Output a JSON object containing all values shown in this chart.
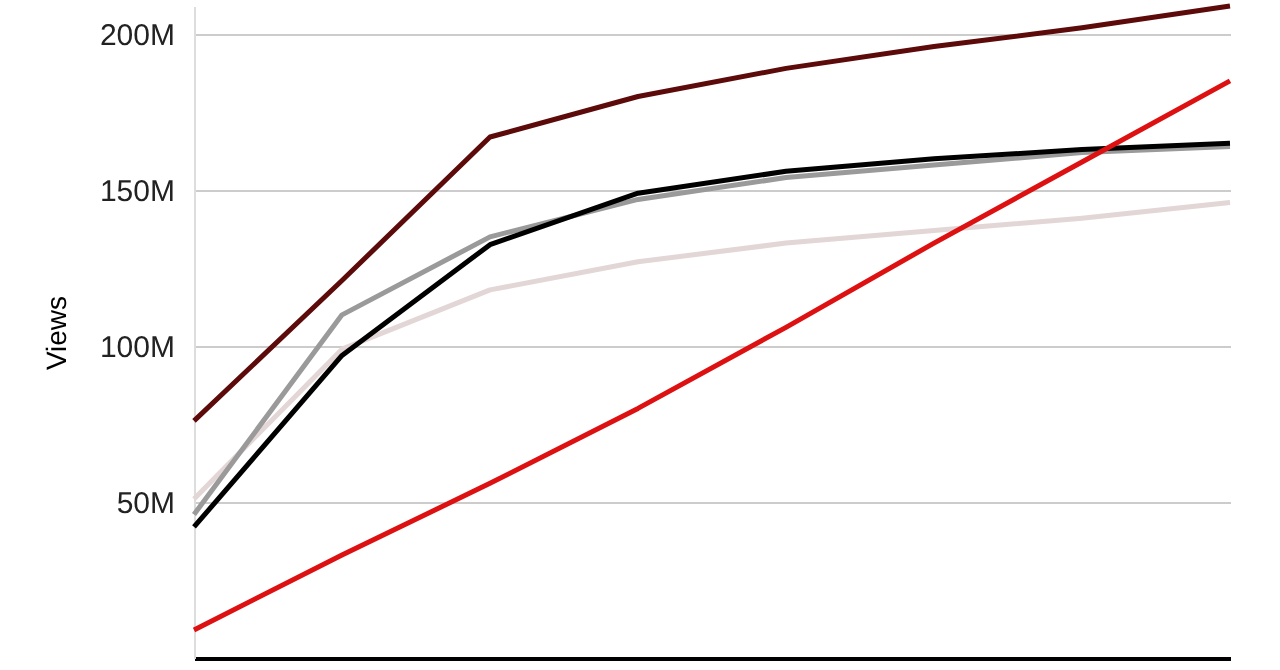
{
  "chart_data": {
    "type": "line",
    "ylabel": "Views",
    "categories": [
      null,
      null,
      null,
      null,
      null,
      null,
      null,
      null
    ],
    "series": [
      {
        "color": "#e3d6d6",
        "values": [
          51,
          99,
          118,
          127,
          133,
          137,
          141,
          146
        ]
      },
      {
        "color": "#9a9a9a",
        "values": [
          46,
          110,
          135,
          147,
          154,
          158,
          162,
          164
        ]
      },
      {
        "color": "#000000",
        "values": [
          42,
          97,
          132.5,
          149,
          156,
          160,
          163,
          165
        ]
      },
      {
        "color": "#dd1111",
        "values": [
          9,
          33,
          56,
          80,
          106,
          133,
          159,
          185
        ]
      },
      {
        "color": "#5c0a0a",
        "values": [
          76,
          121,
          167,
          180,
          189,
          196,
          202,
          209
        ]
      }
    ],
    "ylim": [
      0,
      209
    ],
    "yticks": [
      {
        "value": 50,
        "label": "50M"
      },
      {
        "value": 100,
        "label": "100M"
      },
      {
        "value": 150,
        "label": "150M"
      },
      {
        "value": 200,
        "label": "200M"
      }
    ],
    "grid": "y",
    "tick_labels": "y",
    "marker": "none",
    "line_style": "solid"
  }
}
